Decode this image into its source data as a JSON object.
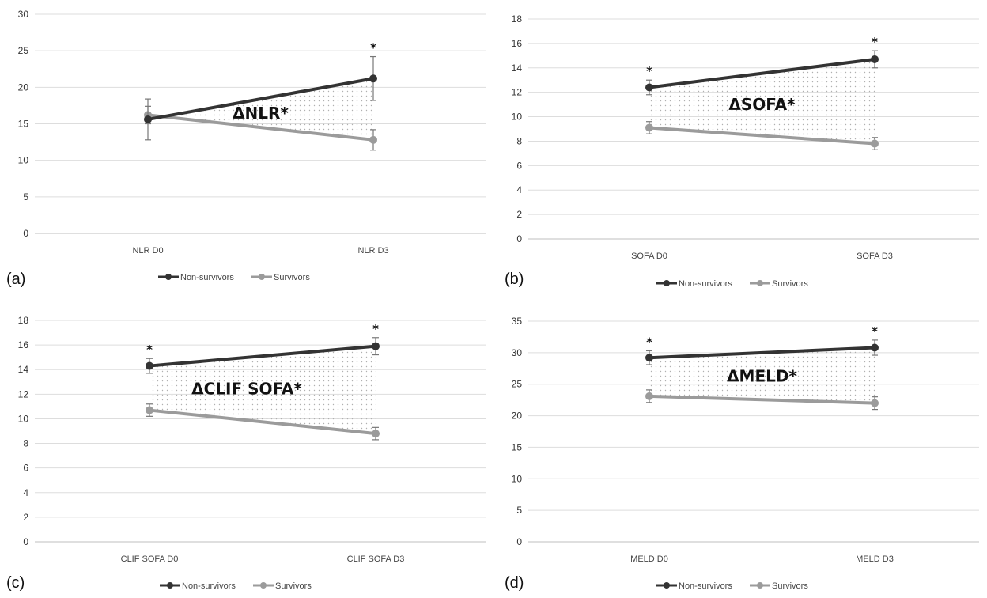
{
  "chart_data": [
    {
      "panel_label": "(a)",
      "type": "line",
      "categories": [
        "NLR D0",
        "NLR D3"
      ],
      "ylim": [
        0,
        30
      ],
      "yticks": [
        0,
        5,
        10,
        15,
        20,
        25,
        30
      ],
      "grid": true,
      "series": [
        {
          "name": "Non-survivors",
          "color": "#333333",
          "values": [
            15.6,
            21.2
          ],
          "err": [
            2.8,
            3.0
          ],
          "stars": [
            "",
            "*"
          ]
        },
        {
          "name": "Survivors",
          "color": "#9b9b9b",
          "values": [
            16.2,
            12.8
          ],
          "err": [
            1.2,
            1.4
          ],
          "stars": [
            "",
            ""
          ]
        }
      ],
      "annotation": "ΔNLR*",
      "legend_position": "bottom"
    },
    {
      "panel_label": "(b)",
      "type": "line",
      "categories": [
        "SOFA D0",
        "SOFA D3"
      ],
      "ylim": [
        0,
        18
      ],
      "yticks": [
        0,
        2,
        4,
        6,
        8,
        10,
        12,
        14,
        16,
        18
      ],
      "grid": true,
      "series": [
        {
          "name": "Non-survivors",
          "color": "#333333",
          "values": [
            12.4,
            14.7
          ],
          "err": [
            0.6,
            0.7
          ],
          "stars": [
            "*",
            "*"
          ]
        },
        {
          "name": "Survivors",
          "color": "#9b9b9b",
          "values": [
            9.1,
            7.8
          ],
          "err": [
            0.5,
            0.5
          ],
          "stars": [
            "",
            ""
          ]
        }
      ],
      "annotation": "ΔSOFA*",
      "legend_position": "bottom"
    },
    {
      "panel_label": "(c)",
      "type": "line",
      "categories": [
        "CLIF SOFA D0",
        "CLIF SOFA D3"
      ],
      "ylim": [
        0,
        18
      ],
      "yticks": [
        0,
        2,
        4,
        6,
        8,
        10,
        12,
        14,
        16,
        18
      ],
      "grid": true,
      "series": [
        {
          "name": "Non-survivors",
          "color": "#333333",
          "values": [
            14.3,
            15.9
          ],
          "err": [
            0.6,
            0.7
          ],
          "stars": [
            "*",
            "*"
          ]
        },
        {
          "name": "Survivors",
          "color": "#9b9b9b",
          "values": [
            10.7,
            8.8
          ],
          "err": [
            0.5,
            0.5
          ],
          "stars": [
            "",
            ""
          ]
        }
      ],
      "annotation": "ΔCLIF SOFA*",
      "legend_position": "bottom"
    },
    {
      "panel_label": "(d)",
      "type": "line",
      "categories": [
        "MELD D0",
        "MELD D3"
      ],
      "ylim": [
        0,
        35
      ],
      "yticks": [
        0,
        5,
        10,
        15,
        20,
        25,
        30,
        35
      ],
      "grid": true,
      "series": [
        {
          "name": "Non-survivors",
          "color": "#333333",
          "values": [
            29.2,
            30.8
          ],
          "err": [
            1.1,
            1.2
          ],
          "stars": [
            "*",
            "*"
          ]
        },
        {
          "name": "Survivors",
          "color": "#9b9b9b",
          "values": [
            23.1,
            22.0
          ],
          "err": [
            1.0,
            1.0
          ],
          "stars": [
            "",
            ""
          ]
        }
      ],
      "annotation": "ΔMELD*",
      "legend_position": "bottom"
    }
  ]
}
